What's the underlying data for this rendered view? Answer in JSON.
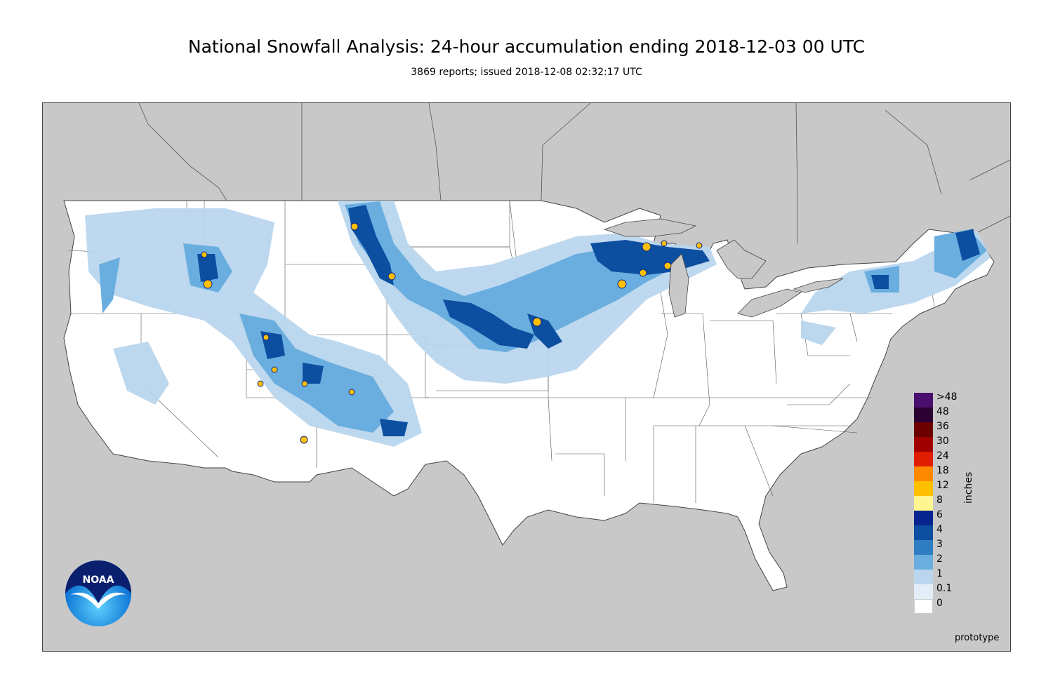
{
  "title": "National Snowfall Analysis: 24-hour accumulation ending 2018-12-03 00 UTC",
  "subtitle": "3869 reports; issued 2018-12-08 02:32:17 UTC",
  "legend": {
    "units": "inches",
    "bins": [
      {
        "label": ">48",
        "color": "#4a0f6e"
      },
      {
        "label": "48",
        "color": "#2b0132"
      },
      {
        "label": "36",
        "color": "#6c0000"
      },
      {
        "label": "30",
        "color": "#a10000"
      },
      {
        "label": "24",
        "color": "#e01d00"
      },
      {
        "label": "18",
        "color": "#ff8a00"
      },
      {
        "label": "12",
        "color": "#ffc000"
      },
      {
        "label": "8",
        "color": "#fff68f"
      },
      {
        "label": "6",
        "color": "#08258f"
      },
      {
        "label": "4",
        "color": "#0c4ea0"
      },
      {
        "label": "3",
        "color": "#2f7ec1"
      },
      {
        "label": "2",
        "color": "#6aaee0"
      },
      {
        "label": "1",
        "color": "#b9d6ee"
      },
      {
        "label": "0.1",
        "color": "#e3eef8"
      },
      {
        "label": "0",
        "color": "#ffffff"
      }
    ]
  },
  "footer_note": "prototype",
  "logo": {
    "text": "NOAA"
  },
  "colors": {
    "land_outside": "#c8c8c8",
    "conus": "#ffffff",
    "border": "#555555"
  }
}
